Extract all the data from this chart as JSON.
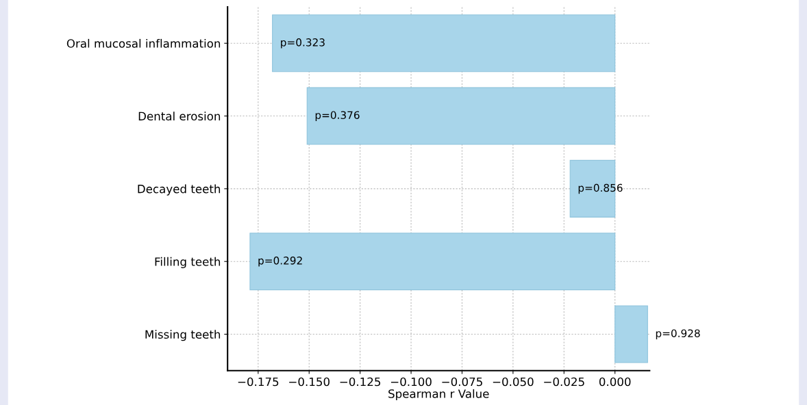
{
  "chart_data": {
    "type": "bar",
    "orientation": "horizontal",
    "xlabel": "Spearman r Value",
    "categories": [
      "Oral mucosal inflammation",
      "Dental erosion",
      "Decayed teeth",
      "Filling teeth",
      "Missing teeth"
    ],
    "values": [
      -0.168,
      -0.151,
      -0.022,
      -0.179,
      0.016
    ],
    "color": "#a8d5ea",
    "xlim": [
      -0.19,
      0.017
    ],
    "xticks": [
      {
        "value": -0.175,
        "label": "−0.175"
      },
      {
        "value": -0.15,
        "label": "−0.150"
      },
      {
        "value": -0.125,
        "label": "−0.125"
      },
      {
        "value": -0.1,
        "label": "−0.100"
      },
      {
        "value": -0.075,
        "label": "−0.075"
      },
      {
        "value": -0.05,
        "label": "−0.050"
      },
      {
        "value": -0.025,
        "label": "−0.025"
      },
      {
        "value": 0.0,
        "label": "0.000"
      }
    ],
    "grid": true,
    "annotations": [
      {
        "text": "p=0.323",
        "x": -0.168,
        "y": "Oral mucosal inflammation"
      },
      {
        "text": "p=0.376",
        "x": -0.151,
        "y": "Dental erosion"
      },
      {
        "text": "p=0.856",
        "x": -0.022,
        "y": "Decayed teeth"
      },
      {
        "text": "p=0.292",
        "x": -0.179,
        "y": "Filling teeth"
      },
      {
        "text": "p=0.928",
        "x": 0.016,
        "y": "Missing teeth"
      }
    ]
  }
}
